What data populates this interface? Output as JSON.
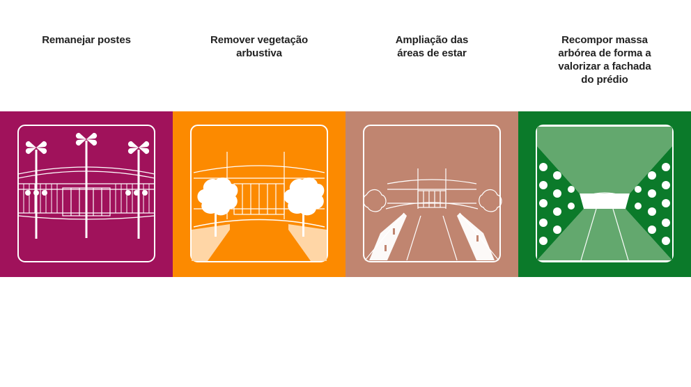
{
  "panels": [
    {
      "caption_lines": [
        "Remanejar postes"
      ],
      "color": "#a0125b"
    },
    {
      "caption_lines": [
        "Remover vegetação",
        "arbustiva"
      ],
      "color": "#fc8a00"
    },
    {
      "caption_lines": [
        "Ampliação das",
        "áreas de estar"
      ],
      "color": "#c08570"
    },
    {
      "caption_lines": [
        "Recompor massa",
        "arbórea de forma a",
        "valorizar a fachada",
        "do prédio"
      ],
      "color": "#0b7a2a"
    }
  ],
  "icons": [
    "remanejar-postes-icon",
    "remover-vegetacao-icon",
    "ampliacao-areas-icon",
    "recompor-massa-arborea-icon"
  ]
}
